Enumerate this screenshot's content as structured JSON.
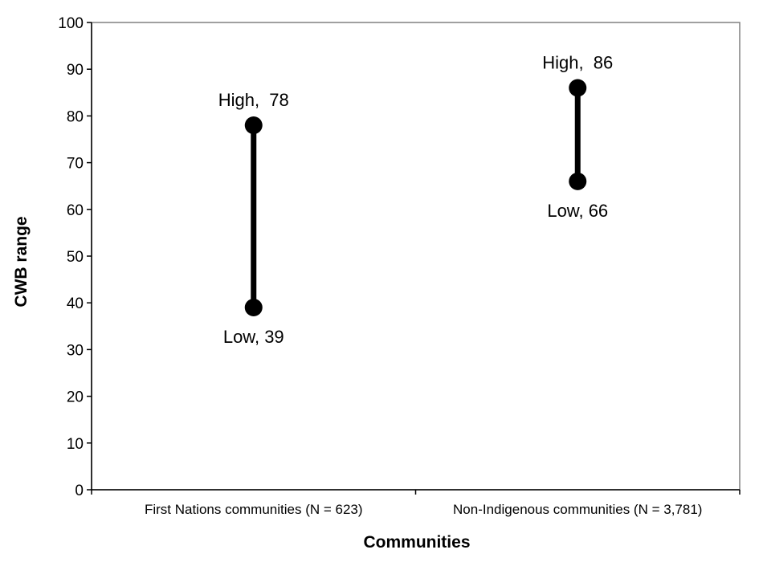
{
  "chart_data": {
    "type": "range",
    "title": "",
    "xlabel": "Communities",
    "ylabel": "CWB range",
    "ylim": [
      0,
      100
    ],
    "yticks": [
      0,
      10,
      20,
      30,
      40,
      50,
      60,
      70,
      80,
      90,
      100
    ],
    "grid": false,
    "legend": "none",
    "line_color": "#000000",
    "categories": [
      "First Nations communities (N = 623)",
      "Non-Indigenous communities (N = 3,781)"
    ],
    "ranges": [
      {
        "high": 78,
        "low": 39,
        "high_label": "High,  78",
        "low_label": "Low, 39"
      },
      {
        "high": 86,
        "low": 66,
        "high_label": "High,  86",
        "low_label": "Low, 66"
      }
    ]
  }
}
